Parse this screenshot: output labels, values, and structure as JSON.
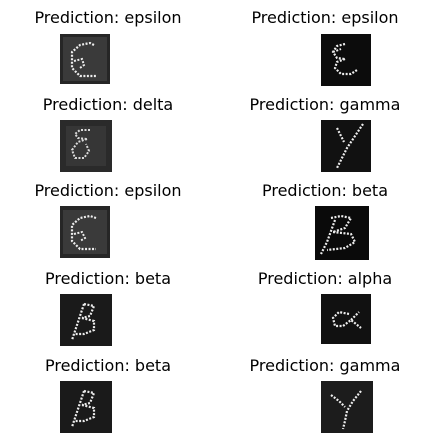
{
  "colors": {
    "background": "#ffffff",
    "title": "#000000",
    "stroke": "#e8e8e8"
  },
  "predictions": [
    {
      "title": "Prediction: epsilon",
      "glyph": "epsilon-rotated"
    },
    {
      "title": "Prediction: epsilon",
      "glyph": "epsilon-small"
    },
    {
      "title": "Prediction: delta",
      "glyph": "delta"
    },
    {
      "title": "Prediction: gamma",
      "glyph": "gamma-dashed"
    },
    {
      "title": "Prediction: epsilon",
      "glyph": "epsilon-rotated"
    },
    {
      "title": "Prediction: beta",
      "glyph": "beta-wide"
    },
    {
      "title": "Prediction: beta",
      "glyph": "beta"
    },
    {
      "title": "Prediction: alpha",
      "glyph": "alpha"
    },
    {
      "title": "Prediction: beta",
      "glyph": "beta"
    },
    {
      "title": "Prediction: gamma",
      "glyph": "gamma"
    }
  ]
}
